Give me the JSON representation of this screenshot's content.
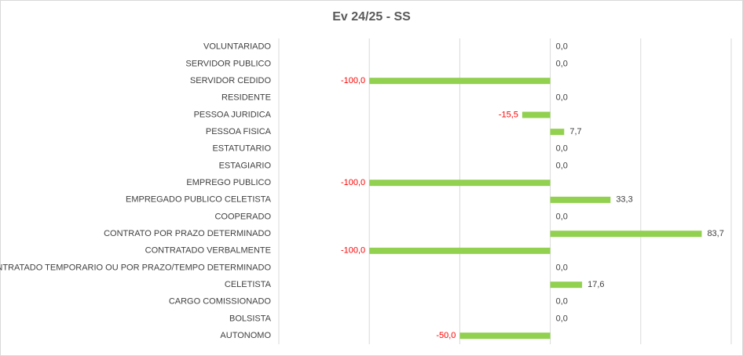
{
  "chart_data": {
    "type": "bar",
    "orientation": "horizontal",
    "title": "Ev 24/25 - SS",
    "categories": [
      "VOLUNTARIADO",
      "SERVIDOR PUBLICO",
      "SERVIDOR CEDIDO",
      "RESIDENTE",
      "PESSOA JURIDICA",
      "PESSOA FISICA",
      "ESTATUTARIO",
      "ESTAGIARIO",
      "EMPREGO PUBLICO",
      "EMPREGADO PUBLICO CELETISTA",
      "COOPERADO",
      "CONTRATO POR PRAZO DETERMINADO",
      "CONTRATADO VERBALMENTE",
      "CONTRATADO TEMPORARIO OU POR PRAZO/TEMPO DETERMINADO",
      "CELETISTA",
      "CARGO COMISSIONADO",
      "BOLSISTA",
      "AUTONOMO"
    ],
    "values": [
      0,
      0,
      -100,
      0,
      -15.5,
      7.7,
      0,
      0,
      -100,
      33.3,
      0,
      83.7,
      -100,
      0,
      17.6,
      0,
      0,
      -50
    ],
    "value_labels": [
      "0,0",
      "0,0",
      "-100,0",
      "0,0",
      "-15,5",
      "7,7",
      "0,0",
      "0,0",
      "-100,0",
      "33,3",
      "0,0",
      "83,7",
      "-100,0",
      "0,0",
      "17,6",
      "0,0",
      "0,0",
      "-50,0"
    ],
    "color": "#92d050",
    "negative_label_color": "#ff0000",
    "xlim": [
      -150,
      100
    ],
    "xticks": [
      -150,
      -100,
      -50,
      0,
      50,
      100
    ],
    "grid": true
  }
}
